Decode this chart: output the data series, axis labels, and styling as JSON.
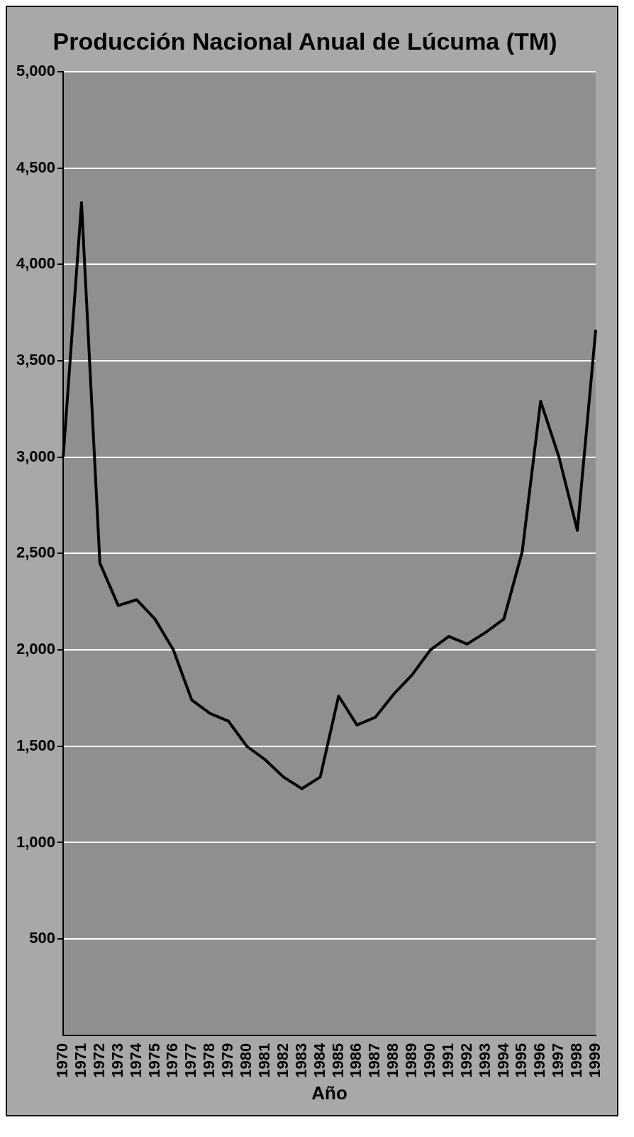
{
  "chart_data": {
    "type": "line",
    "title": "Producción Nacional Anual de Lúcuma (TM)",
    "xlabel": "Año",
    "categories": [
      "1970",
      "1971",
      "1972",
      "1973",
      "1974",
      "1975",
      "1976",
      "1977",
      "1978",
      "1979",
      "1980",
      "1981",
      "1982",
      "1983",
      "1984",
      "1985",
      "1986",
      "1987",
      "1988",
      "1989",
      "1990",
      "1991",
      "1992",
      "1993",
      "1994",
      "1995",
      "1996",
      "1997",
      "1998",
      "1999"
    ],
    "series": [
      {
        "color": "#000000",
        "values": [
          3000,
          4320,
          2450,
          2230,
          2260,
          2160,
          2000,
          1740,
          1670,
          1630,
          1500,
          1430,
          1340,
          1280,
          1340,
          1760,
          1610,
          1650,
          1770,
          1870,
          2000,
          2070,
          2030,
          2090,
          2160,
          2510,
          3290,
          3000,
          2620,
          3660
        ]
      }
    ],
    "ylim": [
      0,
      5000
    ],
    "yticks": [
      500,
      {
        "value": 1000,
        "label": "1,000"
      },
      {
        "value": 1500,
        "label": "1,500"
      },
      {
        "value": 2000,
        "label": "2,000"
      },
      {
        "value": 2500,
        "label": "2,500"
      },
      {
        "value": 3000,
        "label": "3,000"
      },
      {
        "value": 3500,
        "label": "3,500"
      },
      {
        "value": 4000,
        "label": "4,000"
      },
      {
        "value": 4500,
        "label": "4,500"
      },
      {
        "value": 5000,
        "label": "5,000"
      }
    ],
    "grid": "y",
    "legend": false,
    "marker": "none",
    "line_style": "solid"
  }
}
